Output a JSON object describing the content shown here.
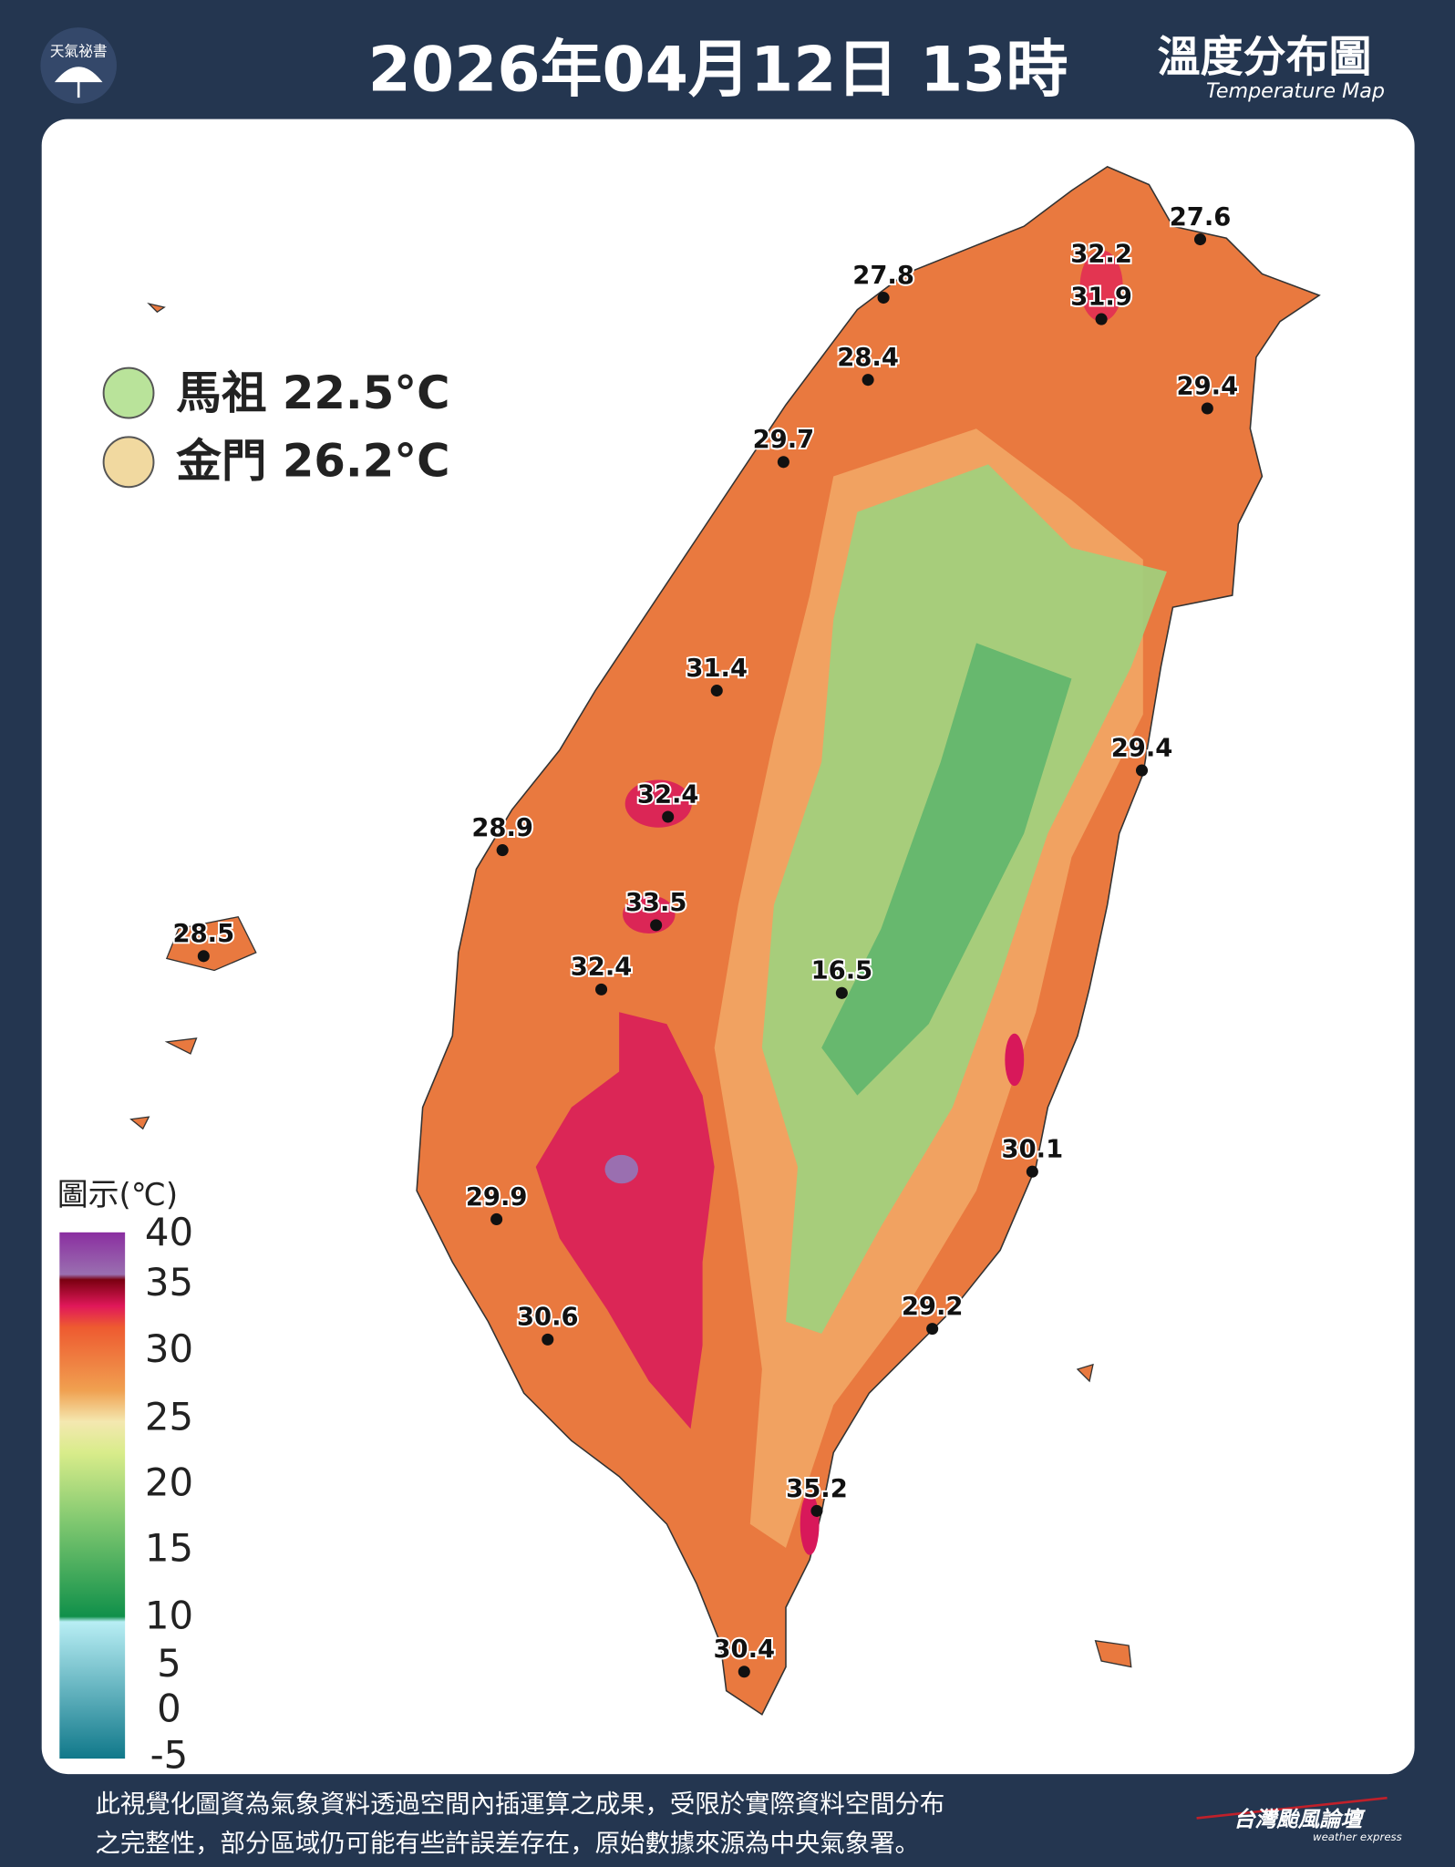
{
  "header": {
    "logo_text": "天氣祕書",
    "title": "2026年04月12日 13時",
    "product_title": "溫度分布圖",
    "product_subtitle": "Temperature Map"
  },
  "islands": [
    {
      "name": "馬祖",
      "temp": "22.5°C"
    },
    {
      "name": "金門",
      "temp": "26.2°C"
    }
  ],
  "stations": [
    27.6,
    32.2,
    31.9,
    27.8,
    28.4,
    29.4,
    29.7,
    31.4,
    29.4,
    32.4,
    28.9,
    33.5,
    28.5,
    32.4,
    16.5,
    30.1,
    29.9,
    30.6,
    29.2,
    35.2,
    30.4
  ],
  "legend": {
    "title": "圖示(℃)",
    "ticks": [
      40,
      35,
      30,
      25,
      20,
      15,
      10,
      5,
      0,
      -5
    ]
  },
  "footer": {
    "line1": "此視覺化圖資為氣象資料透過空間內插運算之成果，受限於實際資料空間分布",
    "line2": "之完整性，部分區域仍可能有些許誤差存在，原始數據來源為中央氣象署。",
    "brand": "台灣颱風論壇",
    "brand_sub": "weather express"
  }
}
